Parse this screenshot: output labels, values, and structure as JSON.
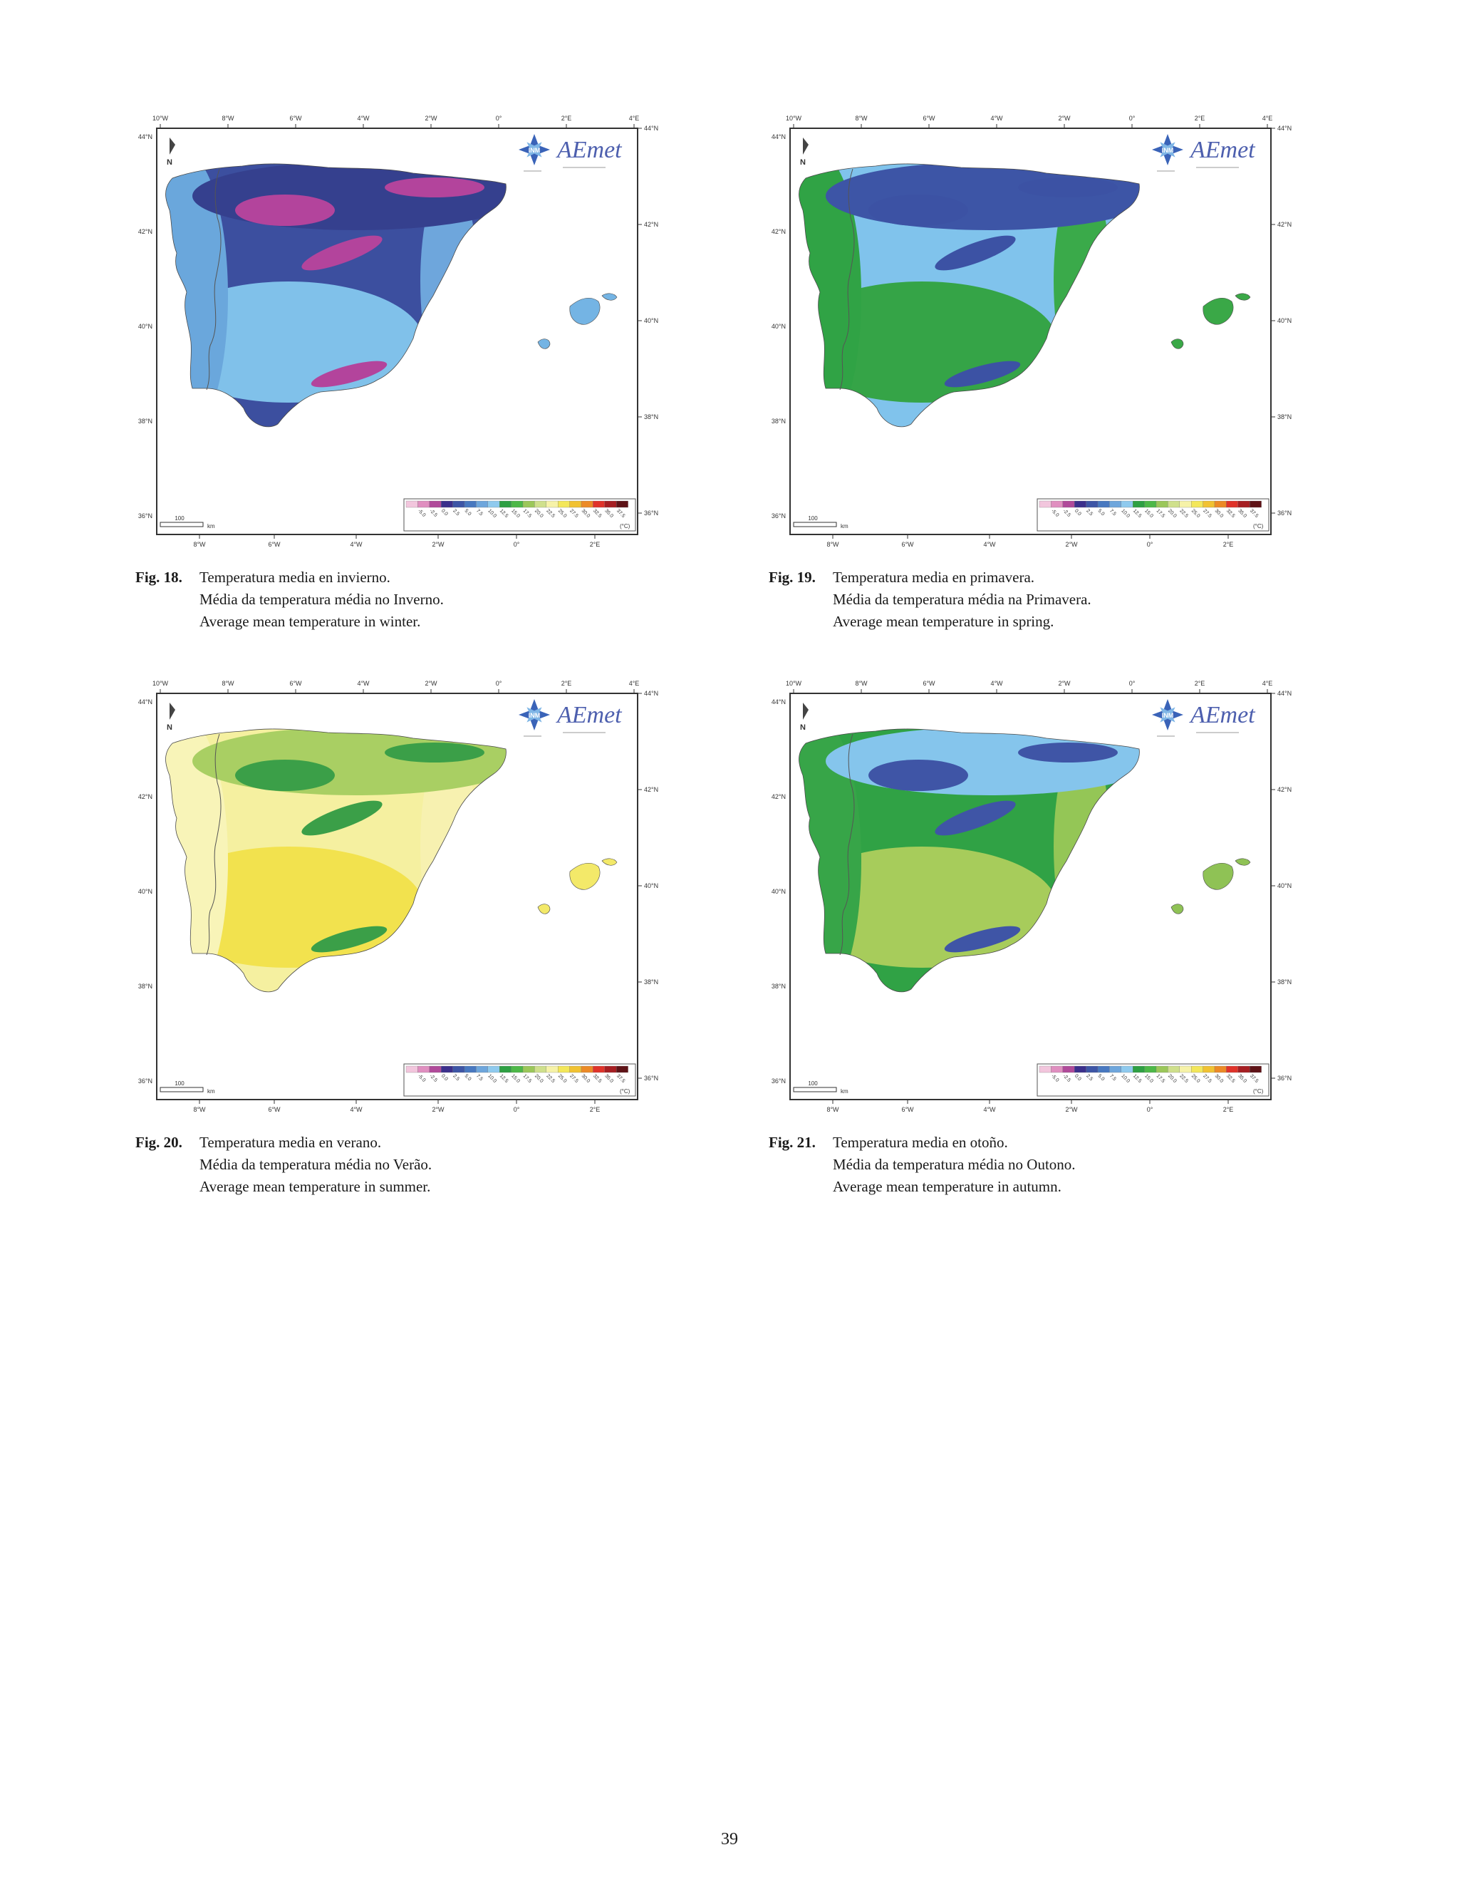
{
  "page_number": "39",
  "map_common": {
    "top_longitude_ticks": [
      "10°W",
      "8°W",
      "6°W",
      "4°W",
      "2°W",
      "0°",
      "2°E",
      "4°E"
    ],
    "bottom_longitude_ticks": [
      "8°W",
      "6°W",
      "4°W",
      "2°W",
      "0°",
      "2°E"
    ],
    "latitude_ticks": [
      "44°N",
      "42°N",
      "40°N",
      "38°N",
      "36°N"
    ],
    "north_label": "N",
    "scale_value": "100",
    "scale_unit": "km",
    "logo_text": "AEmet",
    "logo_seal_text": "INM",
    "legend_unit": "(°C)",
    "legend_values": [
      "-5.0",
      "-2.5",
      "0.0",
      "2.5",
      "5.0",
      "7.5",
      "10.0",
      "12.5",
      "15.0",
      "17.5",
      "20.0",
      "22.5",
      "25.0",
      "27.5",
      "30.0",
      "32.5",
      "35.0",
      "37.5"
    ],
    "legend_colors": [
      "#f2c6dd",
      "#e08fc0",
      "#b04a9a",
      "#3b2f8c",
      "#3d55a6",
      "#4878c0",
      "#6ea6dc",
      "#8fcaee",
      "#2ea043",
      "#4db848",
      "#9bc75a",
      "#cfe08c",
      "#f6f2a8",
      "#f3e75a",
      "#f1c232",
      "#ec8a26",
      "#e0332a",
      "#a61e22",
      "#5e1216"
    ]
  },
  "figures": [
    {
      "label": "Fig. 18",
      "caption_es": "Temperatura media en invierno.",
      "caption_pt": "Média da temperatura média no Inverno.",
      "caption_en": "Average mean temperature in winter.",
      "palette": {
        "base": "#3c4f9f",
        "north": "#35408e",
        "south": "#80c1ea",
        "west": "#6aa7dc",
        "east_coast": "#6ea6dc",
        "accent": "#b3449c",
        "islands": "#74b4e4"
      }
    },
    {
      "label": "Fig. 19",
      "caption_es": "Temperatura media en primavera.",
      "caption_pt": "Média da temperatura média na Primavera.",
      "caption_en": "Average mean temperature in spring.",
      "palette": {
        "base": "#80c3ec",
        "north": "#3d55a6",
        "south": "#35a447",
        "west": "#30a345",
        "east_coast": "#3aaa4a",
        "accent": "#3c52a4",
        "islands": "#3aa847"
      }
    },
    {
      "label": "Fig. 20",
      "caption_es": "Temperatura media en verano.",
      "caption_pt": "Média da temperatura média no Verão.",
      "caption_en": "Average mean temperature in summer.",
      "palette": {
        "base": "#f5f0a0",
        "north": "#a9cf63",
        "south": "#f2e24e",
        "west": "#f8f4b8",
        "east_coast": "#f7f1b0",
        "accent": "#3b9f48",
        "islands": "#f3e969"
      }
    },
    {
      "label": "Fig. 21",
      "caption_es": "Temperatura media en otoño.",
      "caption_pt": "Média da temperatura média no Outono.",
      "caption_en": "Average mean temperature in autumn.",
      "palette": {
        "base": "#30a245",
        "north": "#85c5ec",
        "south": "#a7cc5b",
        "west": "#37a548",
        "east_coast": "#94c656",
        "accent": "#3f55a6",
        "islands": "#8fc255"
      }
    }
  ]
}
